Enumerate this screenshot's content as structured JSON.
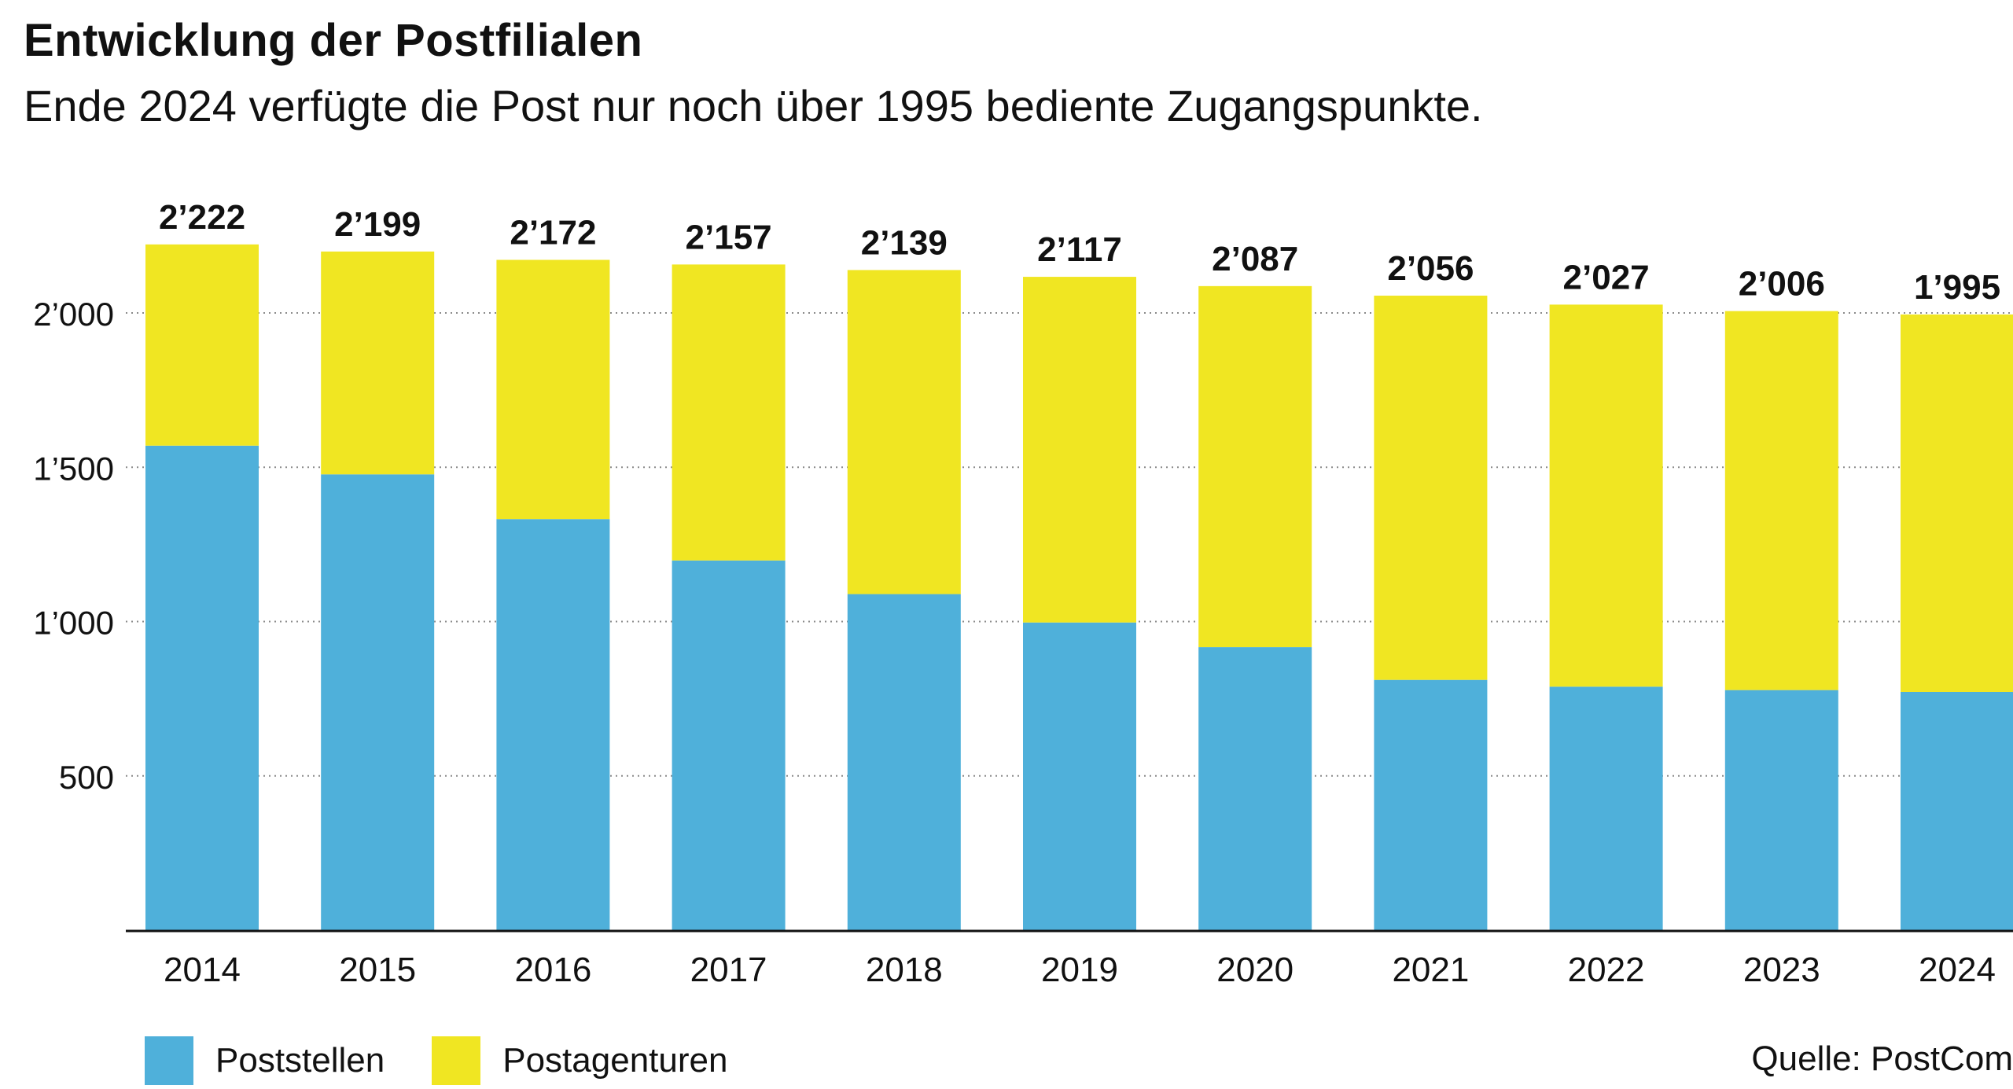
{
  "header": {
    "title": "Entwicklung der Postfilialen",
    "subtitle": "Ende 2024 verfügte die Post nur noch über 1995 bediente Zugangspunkte."
  },
  "source": "Quelle: PostCom",
  "colors": {
    "poststellen": "#4fb0da",
    "postagenturen": "#f0e622",
    "axis": "#111111",
    "grid": "#8a8a8a"
  },
  "chart_data": {
    "type": "bar",
    "stacked": true,
    "title": "Entwicklung der Postfilialen",
    "subtitle": "Ende 2024 verfügte die Post nur noch über 1995 bediente Zugangspunkte.",
    "xlabel": "",
    "ylabel": "",
    "ylim": [
      0,
      2300
    ],
    "yticks": [
      500,
      1000,
      1500,
      2000
    ],
    "ytick_labels": [
      "500",
      "1’000",
      "1’500",
      "2’000"
    ],
    "grid": "horizontal dotted",
    "legend_position": "bottom-left",
    "categories": [
      "2014",
      "2015",
      "2016",
      "2017",
      "2018",
      "2019",
      "2020",
      "2021",
      "2022",
      "2023",
      "2024"
    ],
    "series": [
      {
        "name": "Poststellen",
        "values": [
          1570,
          1477,
          1332,
          1198,
          1089,
          997,
          917,
          811,
          789,
          778,
          772
        ]
      },
      {
        "name": "Postagenturen",
        "values": [
          652,
          722,
          840,
          959,
          1050,
          1120,
          1170,
          1245,
          1238,
          1228,
          1223
        ]
      }
    ],
    "totals": [
      2222,
      2199,
      2172,
      2157,
      2139,
      2117,
      2087,
      2056,
      2027,
      2006,
      1995
    ],
    "total_labels": [
      "2’222",
      "2’199",
      "2’172",
      "2’157",
      "2’139",
      "2’117",
      "2’087",
      "2’056",
      "2’027",
      "2’006",
      "1’995"
    ]
  }
}
